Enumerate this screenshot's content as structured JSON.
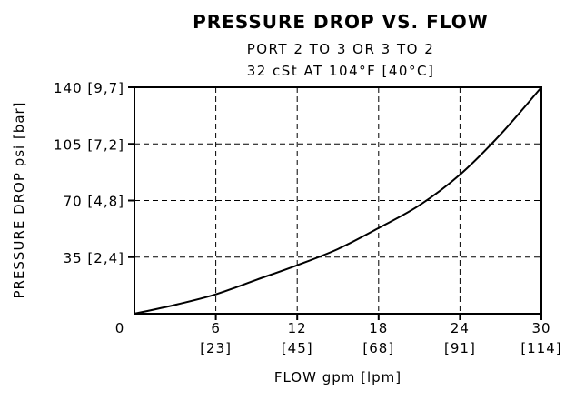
{
  "chart_data": {
    "type": "line",
    "title": "PRESSURE DROP VS. FLOW",
    "subtitle_lines": [
      "PORT 2 TO 3 OR 3 TO 2",
      "32 cSt AT 104°F [40°C]"
    ],
    "xlabel": "FLOW gpm [lpm]",
    "ylabel": "PRESSURE DROP psi [bar]",
    "xlim": [
      0,
      30
    ],
    "ylim": [
      0,
      140
    ],
    "grid": true,
    "x_ticks": [
      {
        "value": 6,
        "label": "6",
        "sublabel": "[23]"
      },
      {
        "value": 12,
        "label": "12",
        "sublabel": "[45]"
      },
      {
        "value": 18,
        "label": "18",
        "sublabel": "[68]"
      },
      {
        "value": 24,
        "label": "24",
        "sublabel": "[91]"
      },
      {
        "value": 30,
        "label": "30",
        "sublabel": "[114]"
      }
    ],
    "y_ticks": [
      {
        "value": 35,
        "label": "35 [2,4]"
      },
      {
        "value": 70,
        "label": "70 [4,8]"
      },
      {
        "value": 105,
        "label": "105 [7,2]"
      },
      {
        "value": 140,
        "label": "140 [9,7]"
      }
    ],
    "origin_label": "0",
    "series": [
      {
        "x": [
          0,
          3,
          6,
          9,
          12,
          15,
          18,
          21,
          24,
          27,
          30
        ],
        "y": [
          0,
          5.5,
          12,
          21,
          30,
          40,
          53,
          67,
          86,
          111,
          140
        ]
      }
    ]
  }
}
